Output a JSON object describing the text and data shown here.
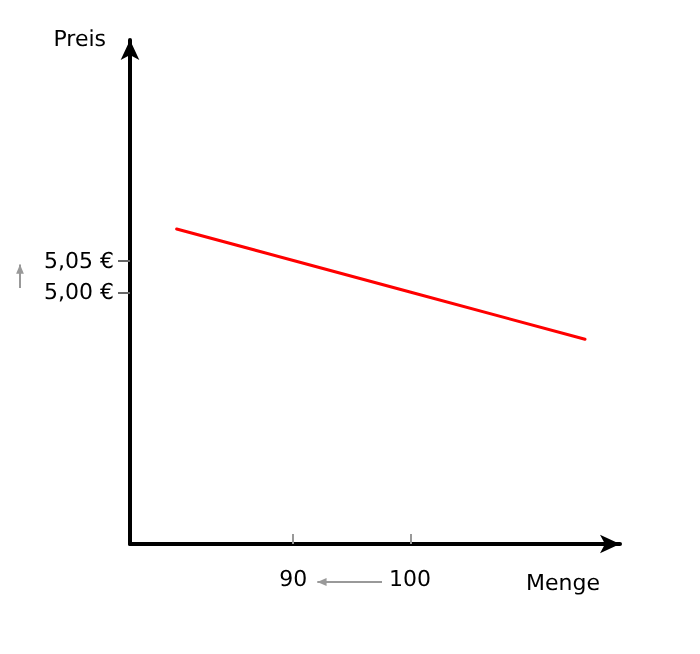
{
  "chart_data": {
    "type": "line",
    "xlabel": "Menge",
    "ylabel": "Preis",
    "x": [
      80,
      90,
      100,
      115
    ],
    "series": [
      {
        "color": "#ff0000",
        "values": [
          5.1,
          5.05,
          5.0,
          4.925
        ]
      }
    ],
    "xlim": [
      76,
      118
    ],
    "xticks": [
      90,
      100
    ],
    "ylim": [
      4.6,
      5.4
    ],
    "yticks": [
      {
        "value": 5.0,
        "label": "5,00 €"
      },
      {
        "value": 5.05,
        "label": "5,05 €"
      }
    ],
    "marker": "none",
    "line_style": "solid"
  }
}
